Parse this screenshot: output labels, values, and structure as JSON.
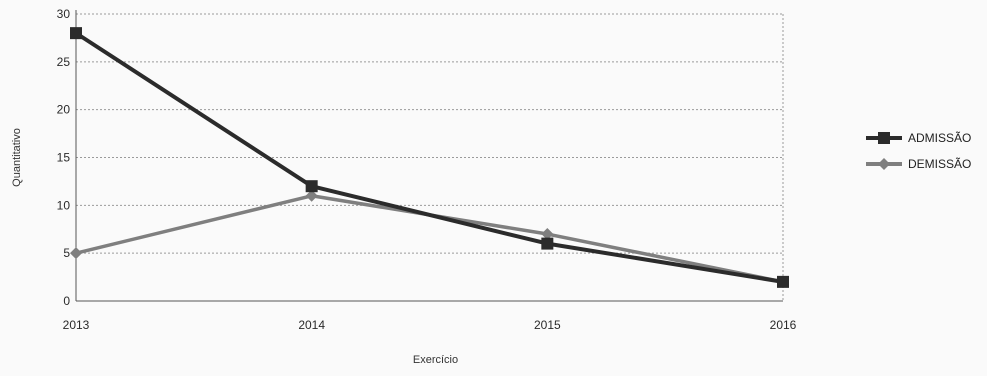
{
  "chart_data": {
    "type": "line",
    "xlabel": "Exercício",
    "ylabel": "Quantitativo",
    "x": [
      "2013",
      "2014",
      "2015",
      "2016"
    ],
    "ylim": [
      0,
      30
    ],
    "yticks": [
      0,
      5,
      10,
      15,
      20,
      25,
      30
    ],
    "grid": "horizontal-dotted",
    "legend_position": "right",
    "series": [
      {
        "name": "ADMISSÃO",
        "values": [
          28,
          12,
          6,
          2
        ],
        "color": "#2b2b2b",
        "marker": "square"
      },
      {
        "name": "DEMISSÃO",
        "values": [
          5,
          11,
          7,
          2
        ],
        "color": "#7f7f7f",
        "marker": "diamond"
      }
    ]
  }
}
